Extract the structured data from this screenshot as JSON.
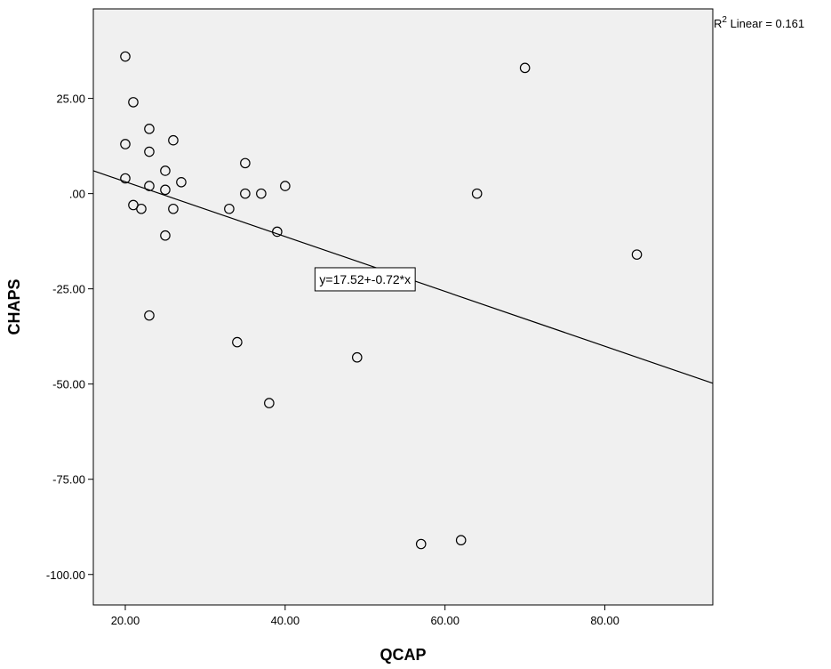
{
  "chart_data": {
    "type": "scatter",
    "xlabel": "QCAP",
    "ylabel": "CHAPS",
    "xlim": [
      16,
      93.5
    ],
    "ylim": [
      -108,
      48.5
    ],
    "xticks": [
      20,
      40,
      60,
      80
    ],
    "xtick_labels": [
      "20.00",
      "40.00",
      "60.00",
      "80.00"
    ],
    "yticks": [
      25,
      0,
      -25,
      -50,
      -75,
      -100
    ],
    "ytick_labels": [
      "25.00",
      ".00",
      "-25.00",
      "-50.00",
      "-75.00",
      "-100.00"
    ],
    "grid": false,
    "background": "#f0f0f0",
    "fit_line": {
      "intercept": 17.52,
      "slope": -0.72,
      "label": "y=17.52+-0.72*x",
      "label_at": [
        50,
        -22.5
      ]
    },
    "r2_label": {
      "prefix": "R",
      "sup": "2",
      "text": " Linear = 0.161"
    },
    "points": [
      {
        "x": 20,
        "y": 36
      },
      {
        "x": 21,
        "y": 24
      },
      {
        "x": 23,
        "y": 17
      },
      {
        "x": 20,
        "y": 13
      },
      {
        "x": 23,
        "y": 11
      },
      {
        "x": 26,
        "y": 14
      },
      {
        "x": 25,
        "y": 6
      },
      {
        "x": 20,
        "y": 4
      },
      {
        "x": 23,
        "y": 2
      },
      {
        "x": 25,
        "y": 1
      },
      {
        "x": 27,
        "y": 3
      },
      {
        "x": 21,
        "y": -3
      },
      {
        "x": 22,
        "y": -4
      },
      {
        "x": 26,
        "y": -4
      },
      {
        "x": 25,
        "y": -11
      },
      {
        "x": 23,
        "y": -32
      },
      {
        "x": 35,
        "y": 8
      },
      {
        "x": 35,
        "y": 0
      },
      {
        "x": 37,
        "y": 0
      },
      {
        "x": 40,
        "y": 2
      },
      {
        "x": 33,
        "y": -4
      },
      {
        "x": 39,
        "y": -10
      },
      {
        "x": 34,
        "y": -39
      },
      {
        "x": 38,
        "y": -55
      },
      {
        "x": 49,
        "y": -43
      },
      {
        "x": 57,
        "y": -92
      },
      {
        "x": 62,
        "y": -91
      },
      {
        "x": 64,
        "y": 0
      },
      {
        "x": 70,
        "y": 33
      },
      {
        "x": 84,
        "y": -16
      }
    ]
  }
}
